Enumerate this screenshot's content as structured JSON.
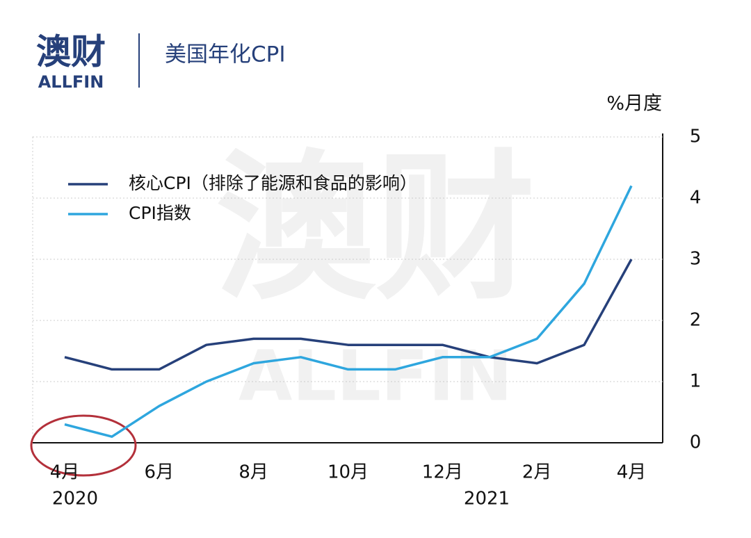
{
  "brand": {
    "name": "澳财",
    "latin": "ALLFIN"
  },
  "watermark": {
    "name": "澳财",
    "latin": "ALLFIN"
  },
  "chart_data": {
    "type": "line",
    "title": "美国年化CPI",
    "y_label": "%月度",
    "categories": [
      "4月",
      null,
      "6月",
      null,
      "8月",
      null,
      "10月",
      null,
      "12月",
      null,
      "2月",
      null,
      "4月"
    ],
    "year_labels": [
      "2020",
      "2021"
    ],
    "series": [
      {
        "name": "核心CPI（排除了能源和食品的影响）",
        "color": "#26407a",
        "values": [
          1.4,
          1.2,
          1.2,
          1.6,
          1.7,
          1.7,
          1.6,
          1.6,
          1.6,
          1.4,
          1.3,
          1.6,
          3.0
        ]
      },
      {
        "name": "CPI指数",
        "color": "#2ea6de",
        "values": [
          0.3,
          0.1,
          0.6,
          1.0,
          1.3,
          1.4,
          1.2,
          1.2,
          1.4,
          1.4,
          1.7,
          2.6,
          4.2
        ]
      }
    ],
    "ylim": [
      0,
      5
    ],
    "yticks": [
      0,
      1,
      2,
      3,
      4,
      5
    ],
    "grid": true,
    "legend": "top-left"
  }
}
